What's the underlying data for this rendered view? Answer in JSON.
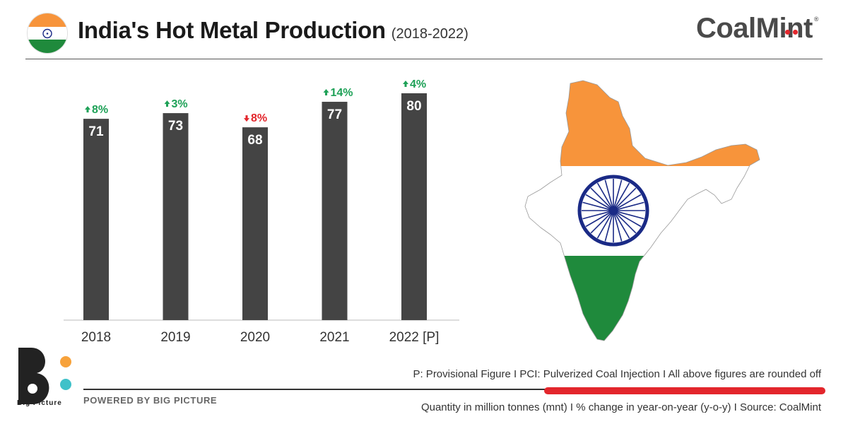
{
  "header": {
    "title": "India's Hot Metal Production",
    "subtitle": "(2018-2022)",
    "brand": "CoalMint",
    "brand_mark": "®",
    "flag_colors": [
      "#f7943b",
      "#ffffff",
      "#1f8a3c"
    ],
    "chakra_color": "#1a2a86"
  },
  "chart_data": {
    "type": "bar",
    "title": "India's Hot Metal Production",
    "subtitle": "(2018-2022)",
    "categories": [
      "2018",
      "2019",
      "2020",
      "2021",
      "2022 [P]"
    ],
    "values": [
      71,
      73,
      68,
      77,
      80
    ],
    "value_labels": [
      "71",
      "73",
      "68",
      "77",
      "80"
    ],
    "changes": [
      {
        "label": "8%",
        "direction": "up"
      },
      {
        "label": "3%",
        "direction": "up"
      },
      {
        "label": "8%",
        "direction": "down"
      },
      {
        "label": "14%",
        "direction": "up"
      },
      {
        "label": "4%",
        "direction": "up"
      }
    ],
    "xlabel": "",
    "ylabel": "",
    "ylim": [
      0,
      80
    ],
    "grid": false,
    "bar_color": "#444444",
    "up_color": "#1ea157",
    "down_color": "#e3262c"
  },
  "footer": {
    "brand_name": "Big Picture",
    "powered_by": "POWERED BY BIG PICTURE",
    "note_top": "P: Provisional Figure  I  PCI: Pulverized Coal Injection  I  All above figures are rounded off",
    "note_bottom": "Quantity in million tonnes (mnt)  I  % change in year-on-year (y-o-y)  I  Source: CoalMint",
    "logo_colors": [
      "#222222",
      "#f7a23b",
      "#3fc1c9"
    ]
  }
}
